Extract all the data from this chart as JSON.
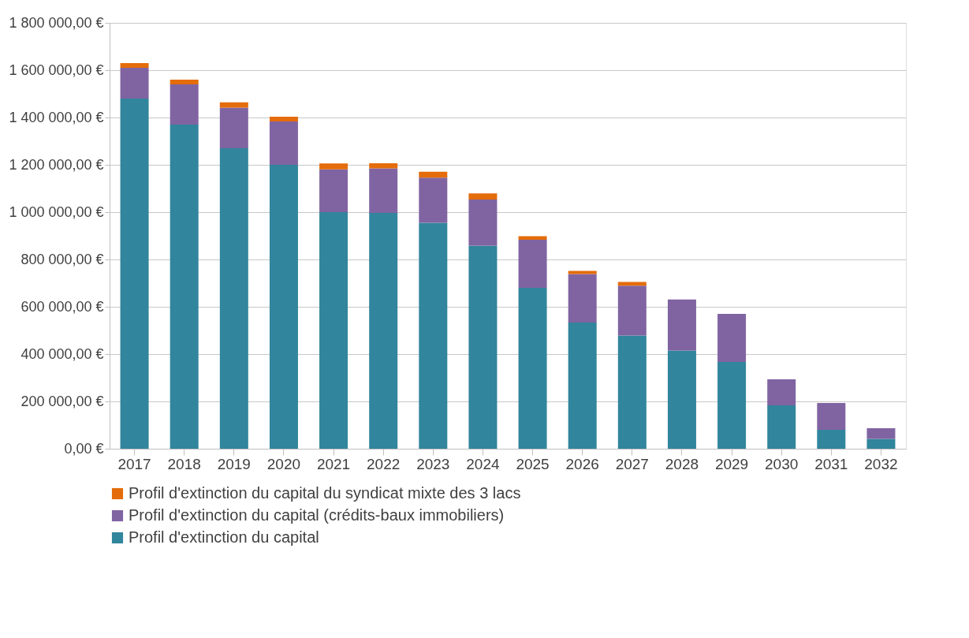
{
  "chart_data": {
    "type": "bar",
    "stacked": true,
    "categories": [
      "2017",
      "2018",
      "2019",
      "2020",
      "2021",
      "2022",
      "2023",
      "2024",
      "2025",
      "2026",
      "2027",
      "2028",
      "2029",
      "2030",
      "2031",
      "2032"
    ],
    "series": [
      {
        "name": "Profil d'extinction du capital",
        "color": "#31859c",
        "values": [
          1480000,
          1370000,
          1270000,
          1200000,
          1000000,
          997000,
          955000,
          858000,
          680000,
          533000,
          478000,
          415000,
          367000,
          183000,
          80000,
          42000
        ]
      },
      {
        "name": "Profil d'extinction du capital (crédits-baux immobiliers)",
        "color": "#8064a2",
        "values": [
          130000,
          170000,
          172000,
          183000,
          181000,
          188000,
          191000,
          195000,
          203000,
          205000,
          211000,
          216000,
          203000,
          110000,
          113000,
          45000
        ]
      },
      {
        "name": "Profil d'extinction du capital du syndicat mixte des 3 lacs",
        "color": "#e46c0a",
        "values": [
          20000,
          20000,
          22000,
          20000,
          25000,
          22000,
          25000,
          26000,
          15000,
          14000,
          16000,
          null,
          null,
          null,
          null,
          null
        ]
      }
    ],
    "ylim": [
      0,
      1800000
    ],
    "yticks": [
      {
        "value": 0,
        "label": "0,00 €"
      },
      {
        "value": 200000,
        "label": "200 000,00 €"
      },
      {
        "value": 400000,
        "label": "400 000,00 €"
      },
      {
        "value": 600000,
        "label": "600 000,00 €"
      },
      {
        "value": 800000,
        "label": "800 000,00 €"
      },
      {
        "value": 1000000,
        "label": "1 000 000,00 €"
      },
      {
        "value": 1200000,
        "label": "1 200 000,00 €"
      },
      {
        "value": 1400000,
        "label": "1 400 000,00 €"
      },
      {
        "value": 1600000,
        "label": "1 600 000,00 €"
      },
      {
        "value": 1800000,
        "label": "1 800 000,00 €"
      }
    ],
    "grid": "y",
    "legend": "bottom"
  }
}
